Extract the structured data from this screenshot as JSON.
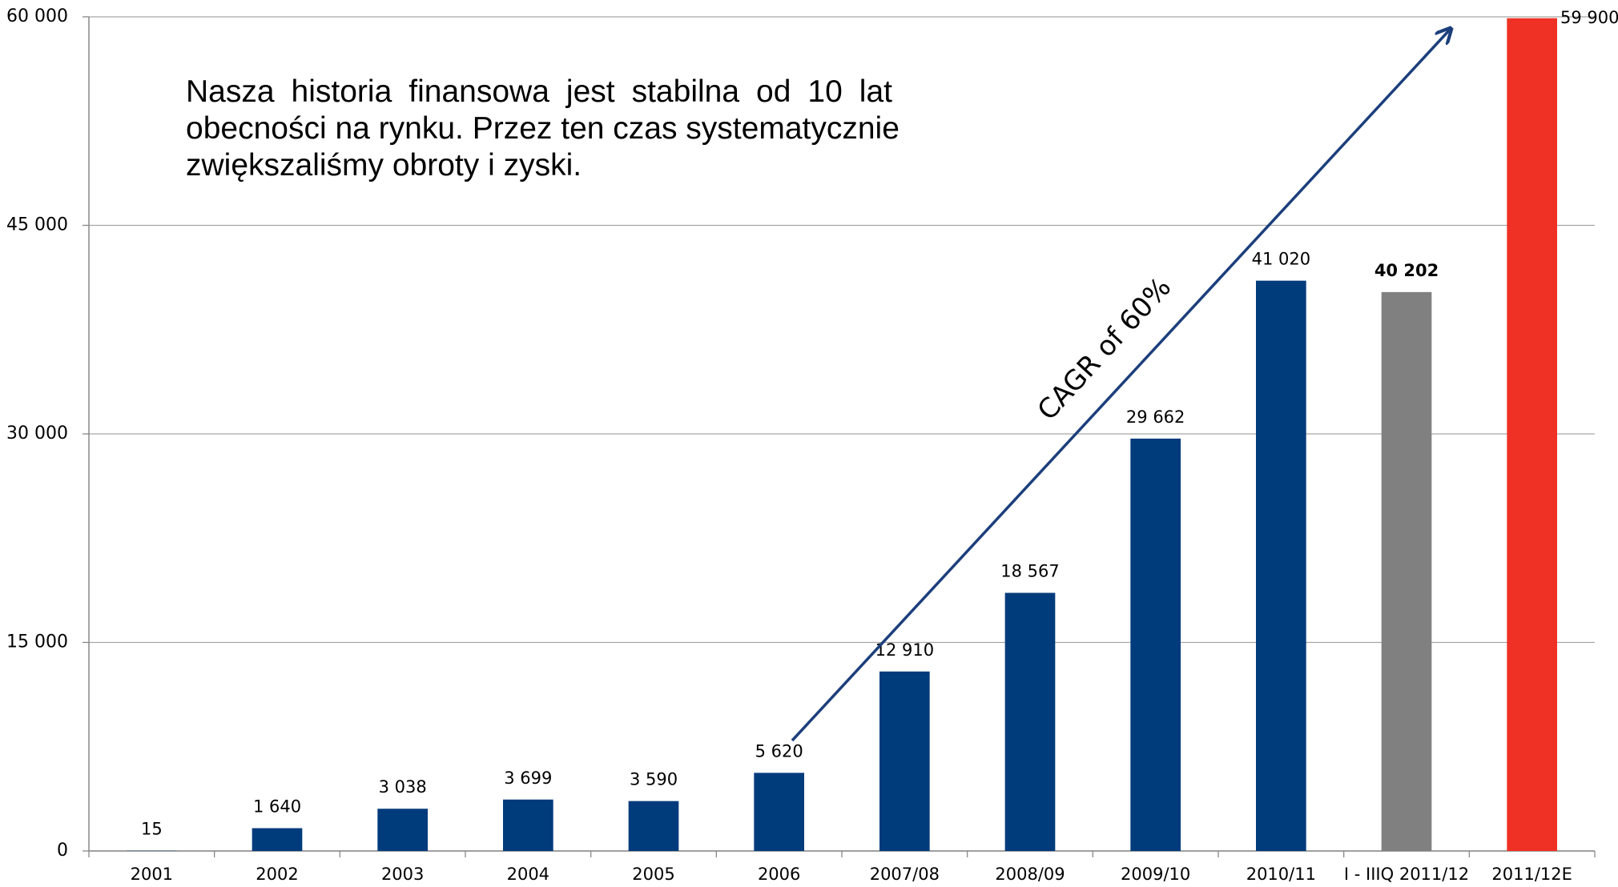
{
  "chart_data": {
    "type": "bar",
    "categories": [
      "2001",
      "2002",
      "2003",
      "2004",
      "2005",
      "2006",
      "2007/08",
      "2008/09",
      "2009/10",
      "2010/11",
      "I - IIIQ 2011/12",
      "2011/12E"
    ],
    "values": [
      15,
      1640,
      3038,
      3699,
      3590,
      5620,
      12910,
      18567,
      29662,
      41020,
      40202,
      59900
    ],
    "value_labels": [
      "15",
      "1 640",
      "3 038",
      "3 699",
      "3 590",
      "5 620",
      "12 910",
      "18 567",
      "29 662",
      "41 020",
      "40 202",
      "59 900"
    ],
    "bold_value_labels": [
      10
    ],
    "colors": [
      "#003b7b",
      "#003b7b",
      "#003b7b",
      "#003b7b",
      "#003b7b",
      "#003b7b",
      "#003b7b",
      "#003b7b",
      "#003b7b",
      "#003b7b",
      "#808080",
      "#ee3124"
    ],
    "ylim": [
      0,
      60000
    ],
    "yticks": [
      0,
      {
        "value": 15000,
        "label": "15 000"
      },
      {
        "value": 30000,
        "label": "30 000"
      },
      {
        "value": 45000,
        "label": "45 000"
      },
      {
        "value": 60000,
        "label": "60 000"
      }
    ],
    "grid": true,
    "annotation": [
      "Nasza historia finansowa jest stabilna od 10 lat",
      "obecności na rynku. Przez ten czas systematycznie",
      "zwiększaliśmy obroty i zyski."
    ],
    "arrow_label": "CAGR of 60%"
  }
}
